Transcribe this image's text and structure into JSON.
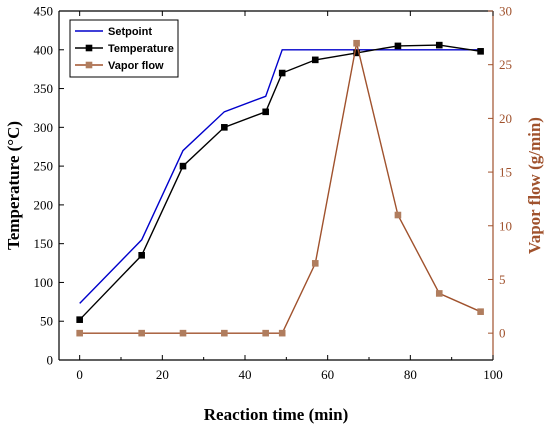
{
  "colors": {
    "setpoint": "#0000cc",
    "temperature": "#000000",
    "vapor": "#a0522d",
    "vapor_marker": "#b07d5e",
    "right_axis": "#a0522d"
  },
  "chart_data": {
    "type": "line",
    "xlabel": "Reaction time (min)",
    "ylabel": "Temperature (°C)",
    "y2label": "Vapor flow (g/min)",
    "xlim": [
      -5,
      100
    ],
    "ylim": [
      0,
      450
    ],
    "y2lim": [
      -2.5,
      30
    ],
    "x_ticks": [
      0,
      20,
      40,
      60,
      80,
      100
    ],
    "y_ticks": [
      0,
      50,
      100,
      150,
      200,
      250,
      300,
      350,
      400,
      450
    ],
    "y2_ticks": [
      0,
      5,
      10,
      15,
      20,
      25,
      30
    ],
    "legend_position": "top-left",
    "series": [
      {
        "name": "Setpoint",
        "axis": "left",
        "marker": "none",
        "x": [
          0,
          15,
          25,
          35,
          45,
          49,
          67,
          97
        ],
        "y": [
          73,
          155,
          270,
          320,
          340,
          400,
          400,
          400
        ]
      },
      {
        "name": "Temperature",
        "axis": "left",
        "marker": "square",
        "x": [
          0,
          15,
          25,
          35,
          45,
          49,
          57,
          67,
          77,
          87,
          97
        ],
        "y": [
          52,
          135,
          250,
          300,
          320,
          370,
          387,
          396,
          405,
          406,
          398
        ]
      },
      {
        "name": "Vapor flow",
        "axis": "right",
        "marker": "square",
        "x": [
          0,
          15,
          25,
          35,
          45,
          49,
          57,
          67,
          77,
          87,
          97
        ],
        "y": [
          0,
          0,
          0,
          0,
          0,
          0,
          6.5,
          27,
          11,
          3.7,
          2
        ]
      }
    ]
  }
}
